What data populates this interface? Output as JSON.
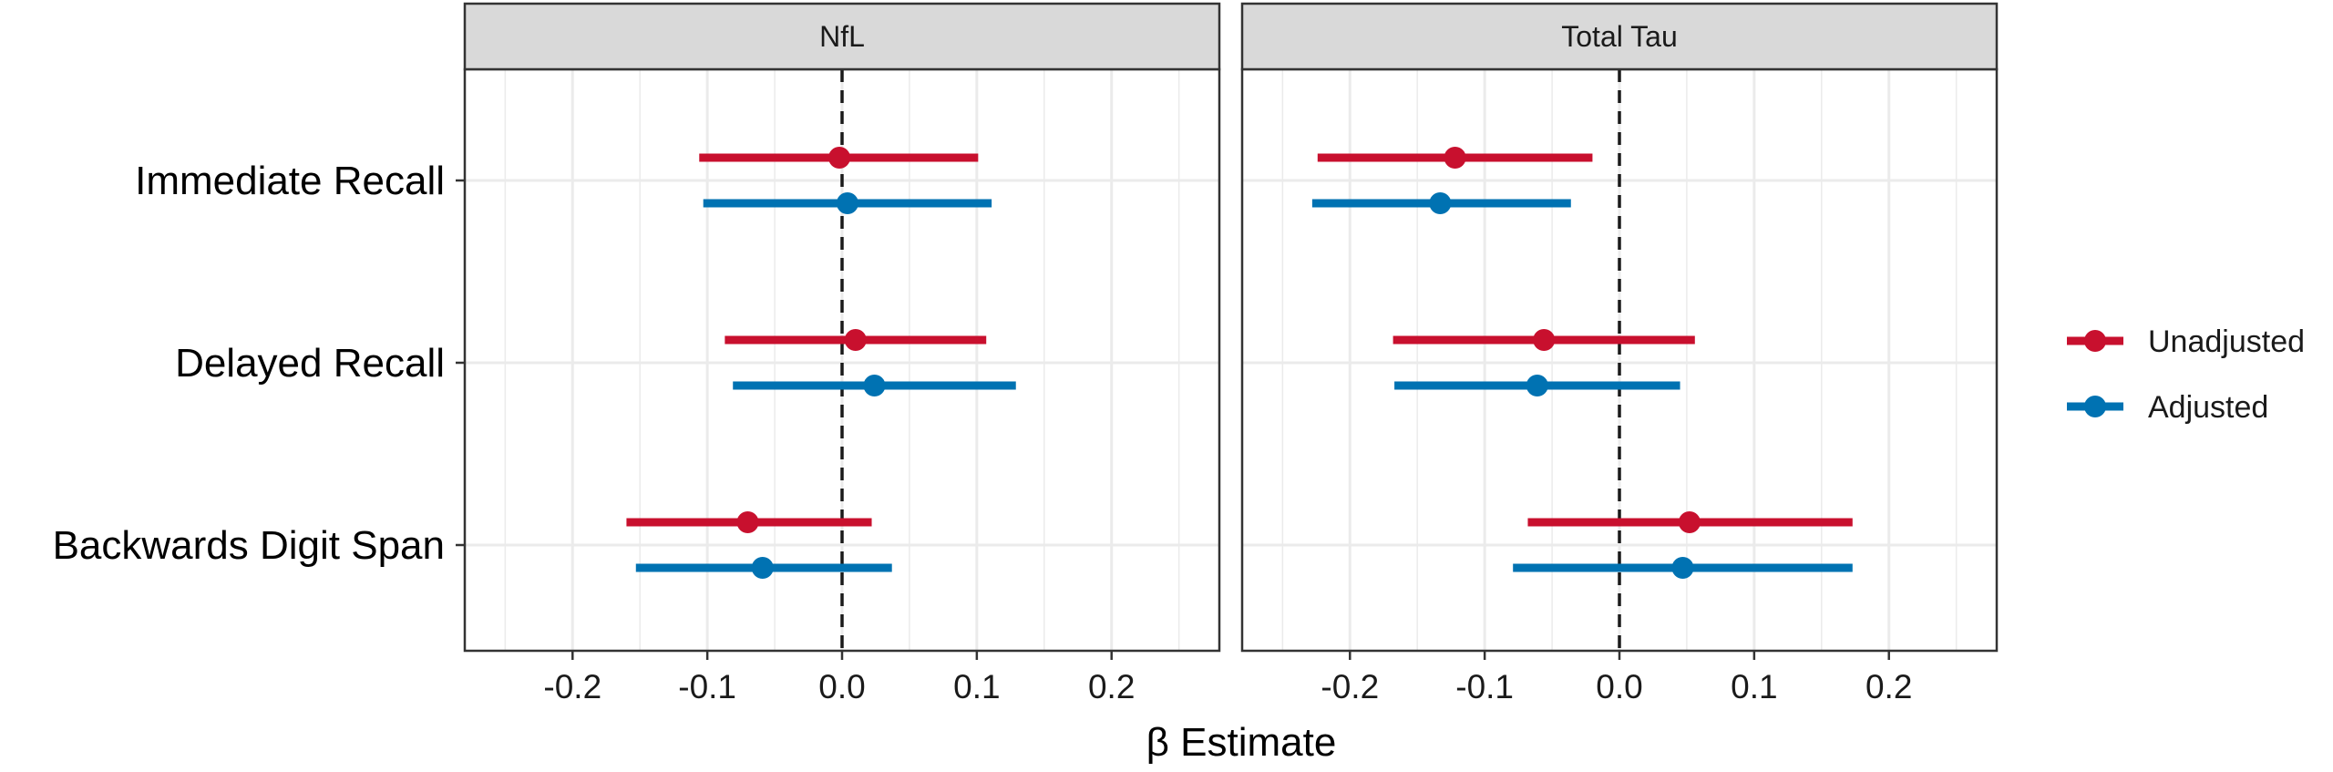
{
  "chart_data": {
    "type": "forest",
    "xlabel": "β Estimate",
    "xlim": [
      -0.28,
      0.28
    ],
    "xticks": [
      "-0.2",
      "-0.1",
      "0.0",
      "0.1",
      "0.2"
    ],
    "xtick_values": [
      -0.2,
      -0.1,
      0.0,
      0.1,
      0.2
    ],
    "grid": true,
    "reference_line": 0,
    "categories": [
      "Immediate Recall",
      "Delayed Recall",
      "Backwards Digit Span"
    ],
    "legend": {
      "placement": "right",
      "entries": [
        "Unadjusted",
        "Adjusted"
      ]
    },
    "colors": {
      "Unadjusted": "#c8102e",
      "Adjusted": "#0072b2"
    },
    "panels": [
      {
        "name": "NfL",
        "series": [
          {
            "name": "Unadjusted",
            "points": [
              {
                "category": "Immediate Recall",
                "estimate": -0.002,
                "lower": -0.106,
                "upper": 0.101
              },
              {
                "category": "Delayed Recall",
                "estimate": 0.01,
                "lower": -0.087,
                "upper": 0.107
              },
              {
                "category": "Backwards Digit Span",
                "estimate": -0.07,
                "lower": -0.16,
                "upper": 0.022
              }
            ]
          },
          {
            "name": "Adjusted",
            "points": [
              {
                "category": "Immediate Recall",
                "estimate": 0.004,
                "lower": -0.103,
                "upper": 0.111
              },
              {
                "category": "Delayed Recall",
                "estimate": 0.024,
                "lower": -0.081,
                "upper": 0.129
              },
              {
                "category": "Backwards Digit Span",
                "estimate": -0.059,
                "lower": -0.153,
                "upper": 0.037
              }
            ]
          }
        ]
      },
      {
        "name": "Total Tau",
        "series": [
          {
            "name": "Unadjusted",
            "points": [
              {
                "category": "Immediate Recall",
                "estimate": -0.122,
                "lower": -0.224,
                "upper": -0.02
              },
              {
                "category": "Delayed Recall",
                "estimate": -0.056,
                "lower": -0.168,
                "upper": 0.056
              },
              {
                "category": "Backwards Digit Span",
                "estimate": 0.052,
                "lower": -0.068,
                "upper": 0.173
              }
            ]
          },
          {
            "name": "Adjusted",
            "points": [
              {
                "category": "Immediate Recall",
                "estimate": -0.133,
                "lower": -0.228,
                "upper": -0.036
              },
              {
                "category": "Delayed Recall",
                "estimate": -0.061,
                "lower": -0.167,
                "upper": 0.045
              },
              {
                "category": "Backwards Digit Span",
                "estimate": 0.047,
                "lower": -0.079,
                "upper": 0.173
              }
            ]
          }
        ]
      }
    ]
  }
}
